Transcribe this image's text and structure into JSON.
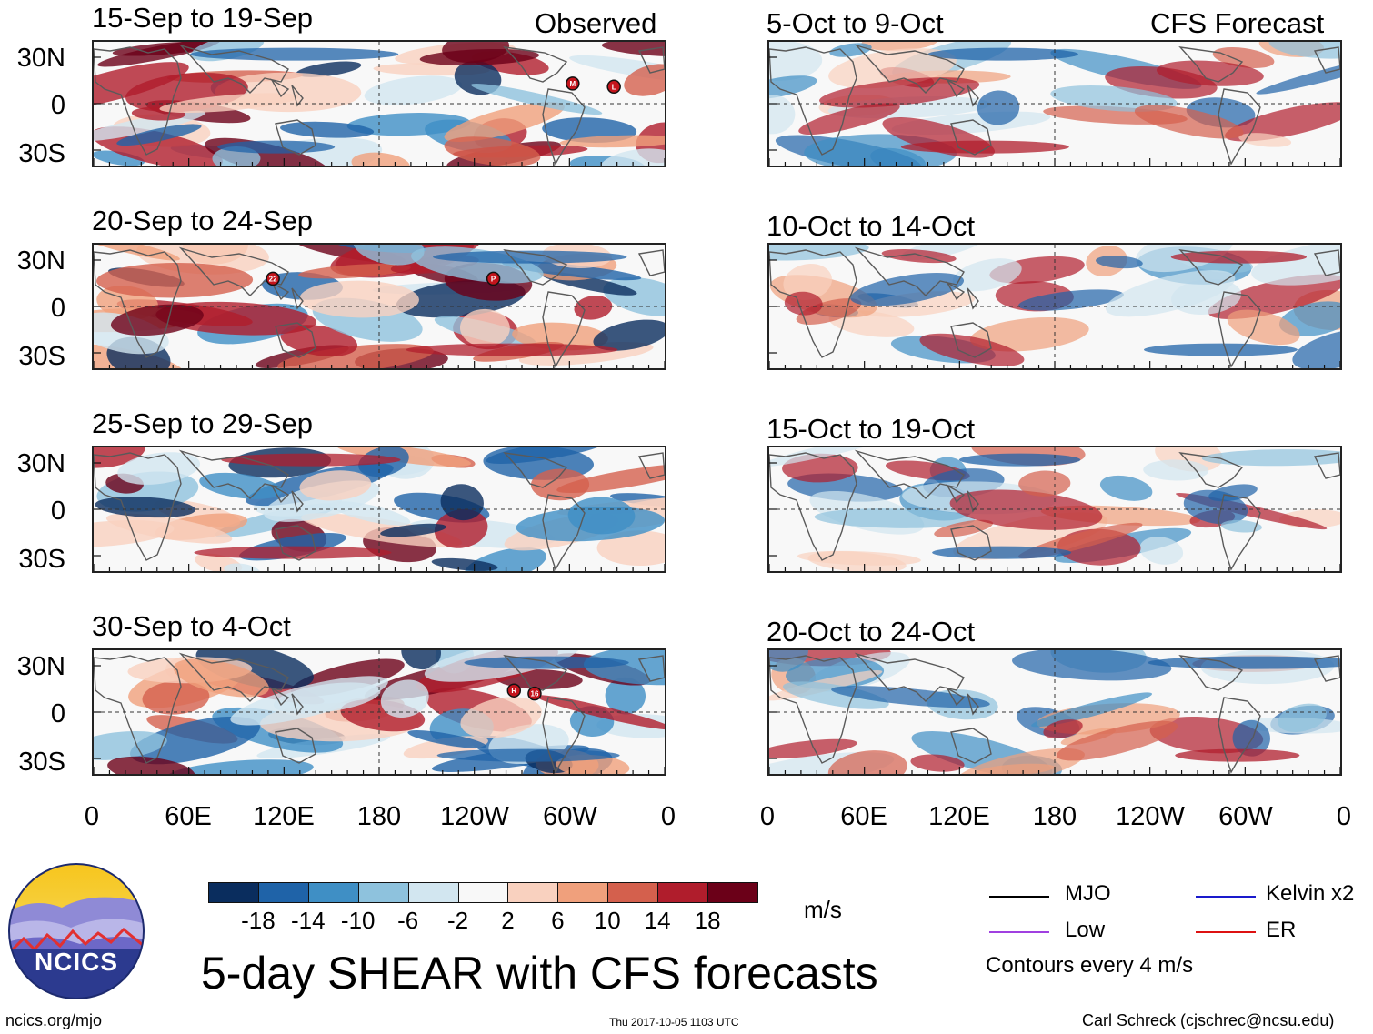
{
  "figure_title": "5-day SHEAR with CFS forecasts",
  "observed_label": "Observed",
  "forecast_label": "CFS Forecast",
  "footer": {
    "left": "ncics.org/mjo",
    "center": "Thu 2017-10-05 1103 UTC",
    "right": "Carl Schreck (cjschrec@ncsu.edu)"
  },
  "logo_text": "NCICS",
  "units": "m/s",
  "contour_note": "Contours every 4 m/s",
  "legend": [
    {
      "label": "MJO",
      "color": "#000000"
    },
    {
      "label": "Kelvin x2",
      "color": "#1a1acc"
    },
    {
      "label": "Low",
      "color": "#a040e0"
    },
    {
      "label": "ER",
      "color": "#dd1111"
    }
  ],
  "chart_data": {
    "type": "heatmap",
    "variable": "5-day vertical wind shear anomaly",
    "lat_ticks": [
      "30N",
      "0",
      "30S"
    ],
    "lon_ticks": [
      "0",
      "60E",
      "120E",
      "180",
      "120W",
      "60W",
      "0"
    ],
    "colorbar": {
      "ticks": [
        "-18",
        "-14",
        "-10",
        "-6",
        "-2",
        "2",
        "6",
        "10",
        "14",
        "18"
      ],
      "colors": [
        "#0a2d5e",
        "#1f63a8",
        "#3f8fc5",
        "#8ec2dd",
        "#d2e6f0",
        "#f8f8f8",
        "#f9d1bf",
        "#f0a07c",
        "#d4604d",
        "#b01d2c",
        "#6b0018"
      ]
    },
    "panels": [
      {
        "title": "15-Sep to 19-Sep",
        "kind": "observed",
        "storms": [
          {
            "label": "M",
            "lon": 302,
            "lat": 13
          },
          {
            "label": "L",
            "lon": 328,
            "lat": 11
          }
        ]
      },
      {
        "title": "20-Sep to 24-Sep",
        "kind": "observed",
        "storms": [
          {
            "label": "22",
            "lon": 113,
            "lat": 18
          },
          {
            "label": "P",
            "lon": 252,
            "lat": 18
          }
        ]
      },
      {
        "title": "25-Sep to 29-Sep",
        "kind": "observed",
        "storms": []
      },
      {
        "title": "30-Sep to 4-Oct",
        "kind": "observed",
        "storms": [
          {
            "label": "R",
            "lon": 265,
            "lat": 14
          },
          {
            "label": "16",
            "lon": 278,
            "lat": 12
          }
        ]
      },
      {
        "title": "5-Oct to 9-Oct",
        "kind": "forecast",
        "storms": []
      },
      {
        "title": "10-Oct to 14-Oct",
        "kind": "forecast",
        "storms": []
      },
      {
        "title": "15-Oct to 19-Oct",
        "kind": "forecast",
        "storms": []
      },
      {
        "title": "20-Oct to 24-Oct",
        "kind": "forecast",
        "storms": []
      }
    ]
  }
}
